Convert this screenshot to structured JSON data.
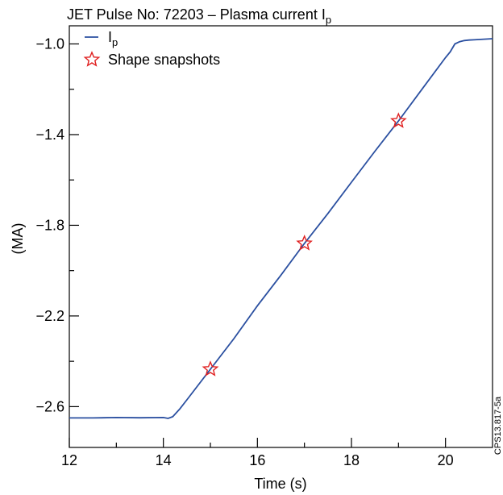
{
  "chart_data": {
    "type": "line",
    "title_prefix": "JET Pulse No: 72203 –  Plasma current I",
    "title_subscript": "p",
    "xlabel": "Time (s)",
    "ylabel": "(MA)",
    "xlim": [
      12,
      21
    ],
    "ylim": [
      -2.78,
      -0.92
    ],
    "x_ticks": [
      12,
      14,
      16,
      18,
      20
    ],
    "x_tick_labels": [
      "12",
      "14",
      "16",
      "18",
      "20"
    ],
    "y_ticks": [
      -2.6,
      -2.2,
      -1.8,
      -1.4,
      -1.0
    ],
    "y_tick_labels": [
      "−2.6",
      "−2.2",
      "−1.8",
      "−1.4",
      "−1.0"
    ],
    "grid": false,
    "legend_placement": "top-left",
    "series": [
      {
        "name_main": "I",
        "name_sub": "p",
        "color": "#2a4fa0",
        "x": [
          12.0,
          12.5,
          13.0,
          13.5,
          14.0,
          14.1,
          14.2,
          14.35,
          14.5,
          15.0,
          15.5,
          16.0,
          16.5,
          17.0,
          17.5,
          18.0,
          18.5,
          19.0,
          19.5,
          20.0,
          20.1,
          20.2,
          20.3,
          20.4,
          20.5,
          20.6,
          21.0
        ],
        "y": [
          -2.65,
          -2.65,
          -2.648,
          -2.649,
          -2.648,
          -2.652,
          -2.644,
          -2.61,
          -2.57,
          -2.435,
          -2.3,
          -2.155,
          -2.02,
          -1.88,
          -1.748,
          -1.61,
          -1.473,
          -1.34,
          -1.2,
          -1.06,
          -1.035,
          -1.0,
          -0.99,
          -0.985,
          -0.983,
          -0.982,
          -0.977
        ]
      }
    ],
    "markers": {
      "name": "Shape snapshots",
      "color": "#e02020",
      "symbol": "star",
      "points": [
        {
          "x": 15.0,
          "y": -2.435
        },
        {
          "x": 17.0,
          "y": -1.88
        },
        {
          "x": 19.0,
          "y": -1.34
        }
      ]
    },
    "side_note": "CPS13.817-5a"
  }
}
